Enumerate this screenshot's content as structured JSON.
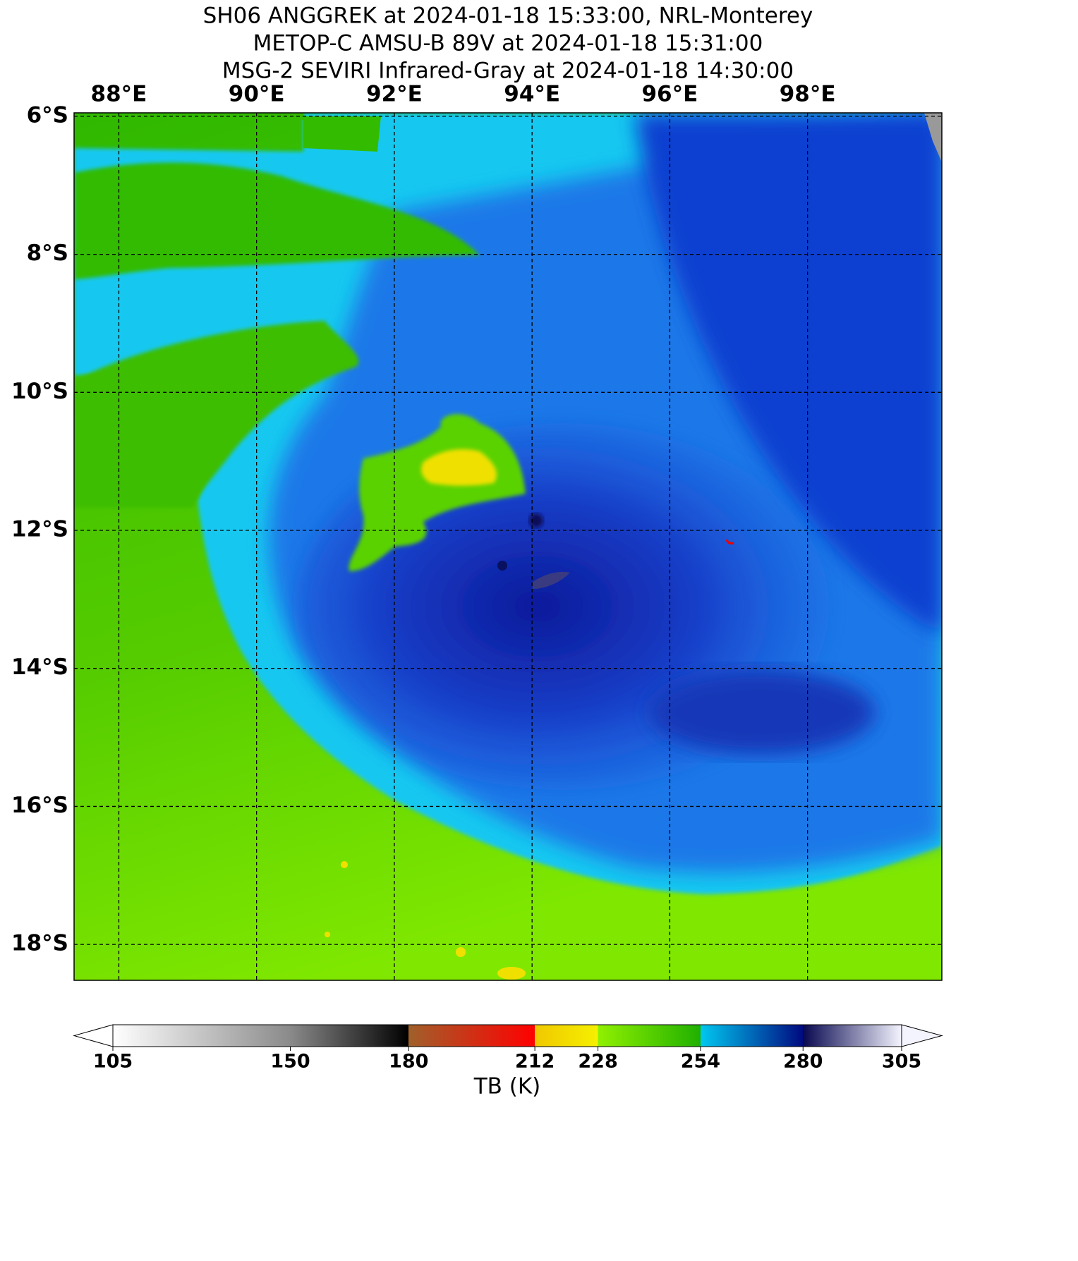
{
  "titles": [
    "SH06 ANGGREK at 2024-01-18 15:33:00, NRL-Monterey",
    "METOP-C AMSU-B 89V at 2024-01-18 15:31:00",
    "MSG-2 SEVIRI Infrared-Gray at 2024-01-18 14:30:00"
  ],
  "map": {
    "lonlim": [
      87.35,
      99.95
    ],
    "latlim": [
      -5.95,
      -18.52
    ],
    "lon_ticks": [
      {
        "value": 88,
        "label": "88°E"
      },
      {
        "value": 90,
        "label": "90°E"
      },
      {
        "value": 92,
        "label": "92°E"
      },
      {
        "value": 94,
        "label": "94°E"
      },
      {
        "value": 96,
        "label": "96°E"
      },
      {
        "value": 98,
        "label": "98°E"
      }
    ],
    "lat_ticks": [
      {
        "value": -6,
        "label": "6°S"
      },
      {
        "value": -8,
        "label": "8°S"
      },
      {
        "value": -10,
        "label": "10°S"
      },
      {
        "value": -12,
        "label": "12°S"
      },
      {
        "value": -14,
        "label": "14°S"
      },
      {
        "value": -16,
        "label": "16°S"
      },
      {
        "value": -18,
        "label": "18°S"
      }
    ],
    "grid": true
  },
  "colorbar": {
    "label": "TB (K)",
    "clim": [
      105,
      305
    ],
    "ticks": [
      105,
      150,
      180,
      212,
      228,
      254,
      280,
      305
    ],
    "colors": [
      [
        "#ffffff",
        "#8a8a8a"
      ],
      [
        "#8a8a8a",
        "#000000"
      ],
      [
        "#a0602a",
        "#ff0000"
      ],
      [
        "#f0c800",
        "#f5f000"
      ],
      [
        "#90f000",
        "#20b000"
      ],
      [
        "#00c8f0",
        "#000a80"
      ],
      [
        "#080850",
        "#f4f4ff"
      ]
    ]
  }
}
